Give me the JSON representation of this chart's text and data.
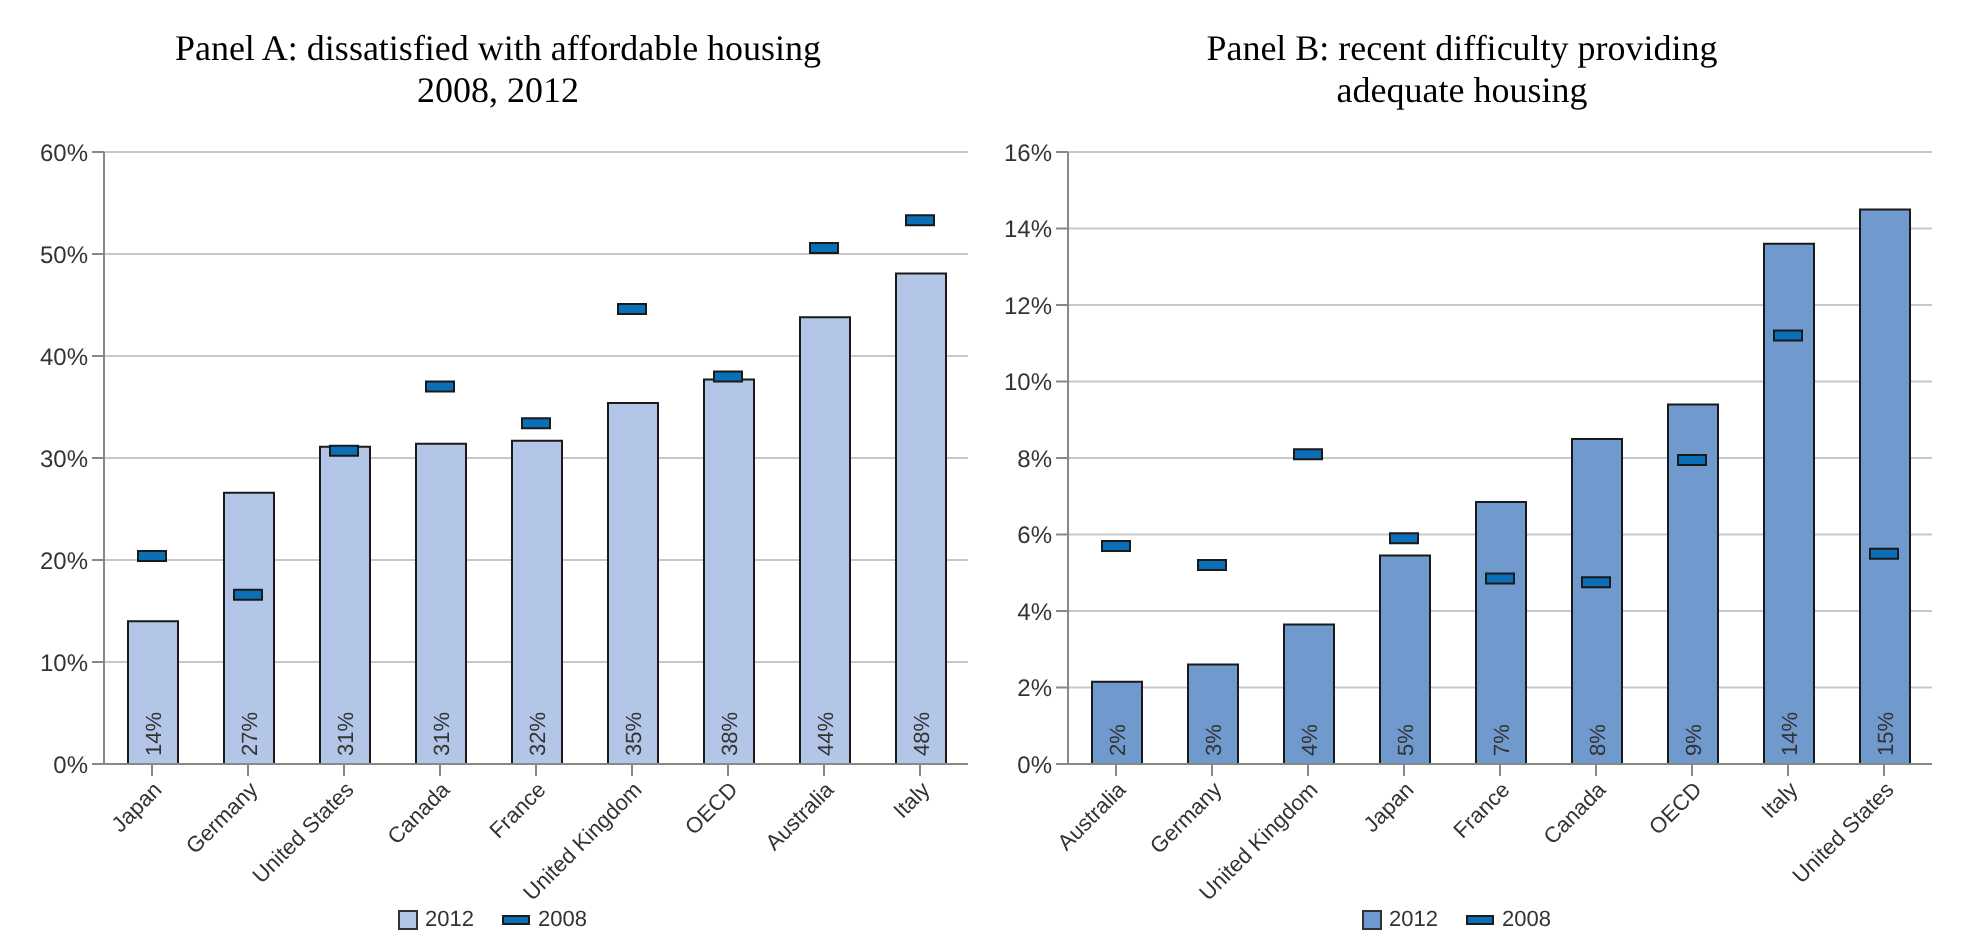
{
  "chart_data": [
    {
      "type": "bar",
      "title": "Panel A: dissatisfied with affordable housing 2008, 2012",
      "categories": [
        "Japan",
        "Germany",
        "United States",
        "Canada",
        "France",
        "United Kingdom",
        "OECD",
        "Australia",
        "Italy"
      ],
      "series": [
        {
          "name": "2012",
          "type": "bar",
          "color": "#b4c6e7",
          "values": [
            14.0,
            26.6,
            31.1,
            31.4,
            31.7,
            35.4,
            37.7,
            43.8,
            48.1
          ],
          "value_labels": [
            "14%",
            "27%",
            "31%",
            "31%",
            "32%",
            "35%",
            "38%",
            "44%",
            "48%"
          ]
        },
        {
          "name": "2008",
          "type": "scatter",
          "color": "#0b6fb8",
          "values": [
            20.4,
            16.6,
            30.7,
            37.0,
            33.4,
            44.6,
            38.0,
            50.6,
            53.3
          ]
        }
      ],
      "ylim": [
        0,
        60
      ],
      "yticks": [
        {
          "value": 0,
          "label": "0%"
        },
        {
          "value": 10,
          "label": "10%"
        },
        {
          "value": 20,
          "label": "20%"
        },
        {
          "value": 30,
          "label": "30%"
        },
        {
          "value": 40,
          "label": "40%"
        },
        {
          "value": 50,
          "label": "50%"
        },
        {
          "value": 60,
          "label": "60%"
        }
      ],
      "grid": "y",
      "legend": "bottom"
    },
    {
      "type": "bar",
      "title": "Panel B: recent difficulty providing adequate housing",
      "categories": [
        "Australia",
        "Germany",
        "United Kingdom",
        "Japan",
        "France",
        "Canada",
        "OECD",
        "Italy",
        "United States"
      ],
      "series": [
        {
          "name": "2012",
          "type": "bar",
          "color": "#7099cd",
          "values": [
            2.15,
            2.6,
            3.65,
            5.45,
            6.85,
            8.5,
            9.4,
            13.6,
            14.5
          ],
          "value_labels": [
            "2%",
            "3%",
            "4%",
            "5%",
            "7%",
            "8%",
            "9%",
            "14%",
            "15%"
          ]
        },
        {
          "name": "2008",
          "type": "scatter",
          "color": "#0b6fb8",
          "values": [
            5.7,
            5.2,
            8.1,
            5.9,
            4.85,
            4.75,
            7.95,
            11.2,
            5.5
          ]
        }
      ],
      "ylim": [
        0,
        16
      ],
      "yticks": [
        {
          "value": 0,
          "label": "0%"
        },
        {
          "value": 2,
          "label": "2%"
        },
        {
          "value": 4,
          "label": "4%"
        },
        {
          "value": 6,
          "label": "6%"
        },
        {
          "value": 8,
          "label": "8%"
        },
        {
          "value": 10,
          "label": "10%"
        },
        {
          "value": 12,
          "label": "12%"
        },
        {
          "value": 14,
          "label": "14%"
        },
        {
          "value": 16,
          "label": "16%"
        }
      ],
      "grid": "y",
      "legend": "bottom"
    }
  ]
}
